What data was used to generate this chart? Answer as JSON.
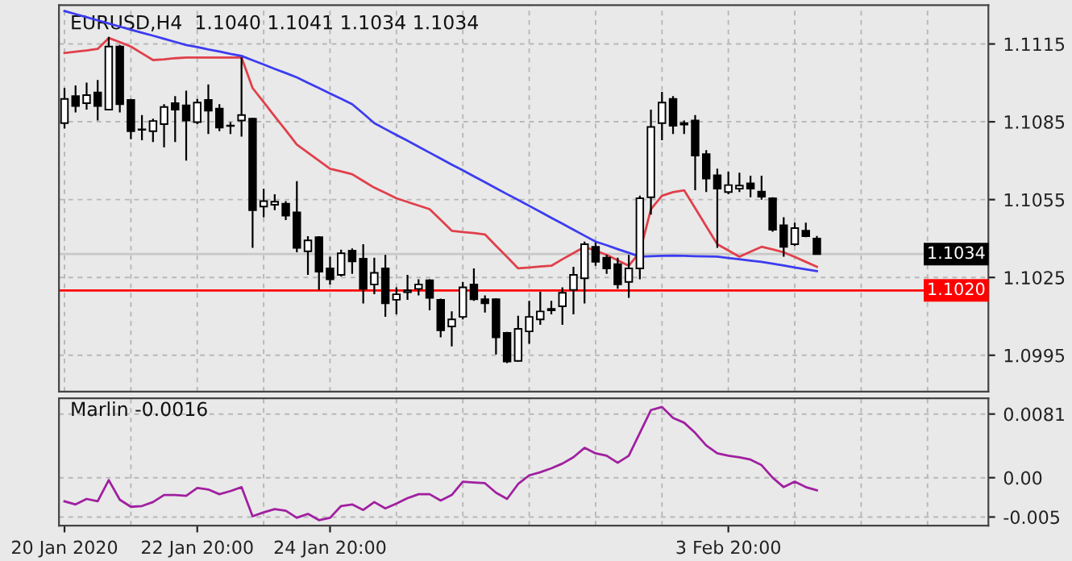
{
  "chart_data": [
    {
      "type": "candlestick",
      "title": "EURUSD,H4  1.1040 1.1041 1.1034 1.1034",
      "categories": [
        null,
        null,
        null,
        null,
        null,
        null,
        null,
        null,
        null,
        null,
        null,
        null,
        null,
        null,
        null,
        null,
        null,
        null,
        null,
        null,
        null,
        null,
        null,
        null,
        null,
        null,
        null,
        null,
        null,
        null,
        null,
        null,
        null,
        null,
        null,
        null,
        null,
        null,
        null,
        null,
        null,
        null,
        null,
        null,
        null,
        null,
        null,
        null,
        null,
        null,
        null,
        null,
        null,
        null,
        null,
        null,
        null,
        null,
        null,
        null,
        null,
        null,
        null,
        null,
        null,
        null,
        null,
        null,
        null,
        null,
        null,
        null,
        null,
        null,
        null,
        null,
        null,
        null,
        null,
        null,
        null,
        null,
        null,
        null
      ],
      "ohlc": [
        [
          1.10845,
          1.1098,
          1.10824,
          1.10938
        ],
        [
          1.10949,
          1.1099,
          1.10886,
          1.10911
        ],
        [
          1.10922,
          1.11001,
          1.10897,
          1.10953
        ],
        [
          1.10963,
          1.11011,
          1.10855,
          1.10911
        ],
        [
          1.10897,
          1.11177,
          1.10897,
          1.1114
        ],
        [
          1.1114,
          1.11146,
          1.10886,
          1.10918
        ],
        [
          1.10934,
          1.10938,
          1.10783,
          1.10814
        ],
        [
          1.10821,
          1.10876,
          1.10779,
          1.10819
        ],
        [
          1.10814,
          1.10862,
          1.10772,
          1.10853
        ],
        [
          1.10841,
          1.10918,
          1.10752,
          1.10907
        ],
        [
          1.10922,
          1.10949,
          1.10772,
          1.10897
        ],
        [
          1.10913,
          1.1097,
          1.107,
          1.10855
        ],
        [
          1.10849,
          1.10938,
          1.10841,
          1.10924
        ],
        [
          1.10934,
          1.10994,
          1.10803,
          1.10893
        ],
        [
          1.10901,
          1.10918,
          1.10814,
          1.10828
        ],
        [
          1.10836,
          1.10849,
          1.10803,
          1.10834
        ],
        [
          1.10855,
          1.11098,
          1.10793,
          1.10876
        ],
        [
          1.10862,
          1.10866,
          1.10364,
          1.10509
        ],
        [
          1.10523,
          1.10592,
          1.10482,
          1.10544
        ],
        [
          1.1053,
          1.10571,
          1.10509,
          1.10542
        ],
        [
          1.10534,
          1.10544,
          1.10471,
          1.10488
        ],
        [
          1.10501,
          1.10621,
          1.10347,
          1.10364
        ],
        [
          1.10351,
          1.10409,
          1.1026,
          1.10393
        ],
        [
          1.10405,
          1.10409,
          1.10202,
          1.10272
        ],
        [
          1.10285,
          1.1033,
          1.10223,
          1.10243
        ],
        [
          1.1026,
          1.10357,
          1.10254,
          1.10343
        ],
        [
          1.10353,
          1.10362,
          1.10264,
          1.10312
        ],
        [
          1.10322,
          1.10378,
          1.1015,
          1.10206
        ],
        [
          1.10223,
          1.10326,
          1.10185,
          1.10268
        ],
        [
          1.10285,
          1.10337,
          1.10098,
          1.1015
        ],
        [
          1.10164,
          1.10212,
          1.10108,
          1.10185
        ],
        [
          1.10193,
          1.1026,
          1.10164,
          1.102
        ],
        [
          1.10206,
          1.10243,
          1.10181,
          1.10223
        ],
        [
          1.10239,
          1.10243,
          1.10123,
          1.10171
        ],
        [
          1.10164,
          1.10168,
          1.10019,
          1.10046
        ],
        [
          1.10061,
          1.10119,
          1.09984,
          1.10088
        ],
        [
          1.10098,
          1.10233,
          1.10088,
          1.10212
        ],
        [
          1.10223,
          1.10285,
          1.1016,
          1.10166
        ],
        [
          1.10166,
          1.10181,
          1.10115,
          1.1015
        ],
        [
          1.10166,
          1.1017,
          1.09953,
          1.10019
        ],
        [
          1.10036,
          1.1004,
          1.0992,
          1.09926
        ],
        [
          1.09928,
          1.10102,
          1.09926,
          1.10052
        ],
        [
          1.10042,
          1.1016,
          1.09994,
          1.10098
        ],
        [
          1.10088,
          1.10195,
          1.10067,
          1.10119
        ],
        [
          1.10123,
          1.1016,
          1.10108,
          1.10129
        ],
        [
          1.10139,
          1.10212,
          1.10067,
          1.10191
        ],
        [
          1.10202,
          1.10291,
          1.10108,
          1.1026
        ],
        [
          1.10247,
          1.10388,
          1.1015,
          1.10378
        ],
        [
          1.10368,
          1.10384,
          1.10295,
          1.1031
        ],
        [
          1.10326,
          1.10337,
          1.10264,
          1.10285
        ],
        [
          1.10301,
          1.10326,
          1.10206,
          1.10223
        ],
        [
          1.10233,
          1.10337,
          1.10171,
          1.10285
        ],
        [
          1.10285,
          1.10565,
          1.10243,
          1.10555
        ],
        [
          1.10559,
          1.10897,
          1.10492,
          1.1083
        ],
        [
          1.10845,
          1.10965,
          1.10779,
          1.10924
        ],
        [
          1.10938,
          1.10949,
          1.10803,
          1.10835
        ],
        [
          1.10845,
          1.10855,
          1.10803,
          1.10839
        ],
        [
          1.10855,
          1.10876,
          1.10586,
          1.1072
        ],
        [
          1.10725,
          1.10741,
          1.10579,
          1.10631
        ],
        [
          1.10644,
          1.10669,
          1.10364,
          1.10592
        ],
        [
          1.10579,
          1.10658,
          1.10571,
          1.10606
        ],
        [
          1.10592,
          1.10654,
          1.10579,
          1.10604
        ],
        [
          1.10613,
          1.10642,
          1.10559,
          1.10592
        ],
        [
          1.10581,
          1.10642,
          1.1055,
          1.10561
        ],
        [
          1.10555,
          1.10559,
          1.10426,
          1.10434
        ],
        [
          1.10451,
          1.10482,
          1.1033,
          1.10368
        ],
        [
          1.10378,
          1.10461,
          1.10372,
          1.1044
        ],
        [
          1.1043,
          1.10461,
          1.10405,
          1.10409
        ],
        [
          1.104,
          1.1041,
          1.1034,
          1.1034
        ],
        null,
        null,
        null,
        null,
        null,
        null,
        null,
        null,
        null,
        null,
        null,
        null,
        null,
        null,
        null
      ],
      "series": [
        {
          "type": "line",
          "color": "#e0404a",
          "values": [
            1.11115,
            1.1112,
            1.11125,
            1.11131,
            1.11173,
            1.11157,
            1.1114,
            1.11114,
            1.11088,
            1.11091,
            1.11095,
            1.11098,
            1.11098,
            1.11098,
            1.11098,
            1.11098,
            1.11098,
            1.1098,
            1.10926,
            1.10871,
            1.10817,
            1.10762,
            1.10731,
            1.107,
            1.10669,
            1.10659,
            1.10648,
            1.10622,
            1.10596,
            1.10576,
            1.10555,
            1.10541,
            1.10527,
            1.10513,
            1.10472,
            1.1043,
            1.10425,
            1.10421,
            1.10416,
            1.10372,
            1.10329,
            1.10285,
            1.10288,
            1.10292,
            1.10295,
            1.1032,
            1.10344,
            1.10368,
            1.10353,
            1.10337,
            1.10316,
            1.10295,
            1.10347,
            1.10513,
            1.10565,
            1.10579,
            1.10586,
            1.10517,
            1.10447,
            1.10378,
            1.10354,
            1.1033,
            1.10349,
            1.10368,
            1.10358,
            1.10347,
            1.10329,
            1.1031,
            1.10291,
            null,
            null,
            null,
            null,
            null,
            null,
            null,
            null,
            null,
            null,
            null,
            null,
            null,
            null,
            null
          ]
        },
        {
          "type": "line",
          "color": "#3c3cf0",
          "values": [
            1.11277,
            1.11265,
            1.11253,
            1.11241,
            1.11229,
            1.11217,
            1.11205,
            1.11193,
            1.11182,
            1.1117,
            1.11158,
            1.11146,
            1.11138,
            1.11129,
            1.11121,
            1.11112,
            1.11104,
            1.11087,
            1.11071,
            1.11054,
            1.11038,
            1.11021,
            1.11,
            1.1098,
            1.10959,
            1.10939,
            1.10918,
            1.10882,
            1.10845,
            1.10822,
            1.10799,
            1.10777,
            1.10754,
            1.10731,
            1.10708,
            1.10685,
            1.10663,
            1.1064,
            1.10617,
            1.10594,
            1.10571,
            1.10549,
            1.10526,
            1.10503,
            1.1048,
            1.10457,
            1.10434,
            1.10411,
            1.10388,
            1.10374,
            1.10359,
            1.10345,
            1.1033,
            1.10332,
            1.10333,
            1.10334,
            1.10333,
            1.10332,
            1.10331,
            1.1033,
            1.10325,
            1.1032,
            1.10315,
            1.1031,
            1.10303,
            1.10296,
            1.10288,
            1.10281,
            1.10274,
            null,
            null,
            null,
            null,
            null,
            null,
            null,
            null,
            null,
            null,
            null,
            null,
            null,
            null,
            null
          ]
        }
      ],
      "ylim": [
        1.0981,
        1.113
      ],
      "yticks": [
        1.1115,
        1.1085,
        1.1055,
        1.1025,
        1.0995
      ],
      "ref_lines": [
        {
          "axis": "y",
          "value": 1.1034,
          "label": "1.1034",
          "color": "#c8c8c8"
        },
        {
          "axis": "y",
          "value": 1.102,
          "label": "1.1020",
          "color": "#ff0000"
        }
      ],
      "grid": true,
      "tick_labels": "y"
    },
    {
      "type": "line",
      "title": "Marlin -0.0016",
      "categories": [
        "20 Jan 2020",
        null,
        null,
        null,
        null,
        null,
        null,
        null,
        null,
        null,
        null,
        null,
        "22 Jan 20:00",
        null,
        null,
        null,
        null,
        null,
        null,
        null,
        null,
        null,
        null,
        null,
        "24 Jan 20:00",
        null,
        null,
        null,
        null,
        null,
        null,
        null,
        null,
        null,
        null,
        null,
        null,
        null,
        null,
        null,
        null,
        null,
        null,
        null,
        null,
        null,
        null,
        null,
        null,
        null,
        null,
        null,
        null,
        null,
        null,
        null,
        null,
        null,
        null,
        null,
        "3 Feb 20:00",
        null,
        null,
        null,
        null,
        null,
        null,
        null,
        null,
        null,
        null,
        null,
        null,
        null,
        null,
        null,
        null,
        null,
        null,
        null,
        null,
        null,
        null,
        null
      ],
      "series": [
        {
          "color": "#a020a0",
          "values": [
            -0.003,
            -0.0034,
            -0.0027,
            -0.003,
            -0.0003,
            -0.0028,
            -0.0037,
            -0.0036,
            -0.0031,
            -0.0022,
            -0.0022,
            -0.0023,
            -0.0013,
            -0.0015,
            -0.0021,
            -0.0017,
            -0.0012,
            -0.0049,
            -0.0044,
            -0.004,
            -0.0042,
            -0.0051,
            -0.0046,
            -0.0054,
            -0.0051,
            -0.0036,
            -0.0034,
            -0.0041,
            -0.0031,
            -0.0039,
            -0.0033,
            -0.0026,
            -0.0021,
            -0.0021,
            -0.0029,
            -0.0022,
            -0.0005,
            -0.0006,
            -0.0007,
            -0.0019,
            -0.0027,
            -0.0008,
            0.0003,
            0.0007,
            0.0012,
            0.0018,
            0.0026,
            0.0038,
            0.0031,
            0.0028,
            0.0019,
            0.0028,
            0.0057,
            0.0086,
            0.009,
            0.0076,
            0.007,
            0.0057,
            0.0041,
            0.0031,
            0.0028,
            0.0026,
            0.0023,
            0.0016,
            0.0,
            -0.0012,
            -0.0005,
            -0.0012,
            -0.0016,
            null,
            null,
            null,
            null,
            null,
            null,
            null,
            null,
            null,
            null,
            null,
            null,
            null,
            null,
            null
          ]
        }
      ],
      "ylim": [
        -0.0061,
        0.0101
      ],
      "yticks": [
        0.0081,
        {
          "value": 0.0,
          "label": "0.00"
        },
        -0.005
      ],
      "grid": true
    }
  ]
}
